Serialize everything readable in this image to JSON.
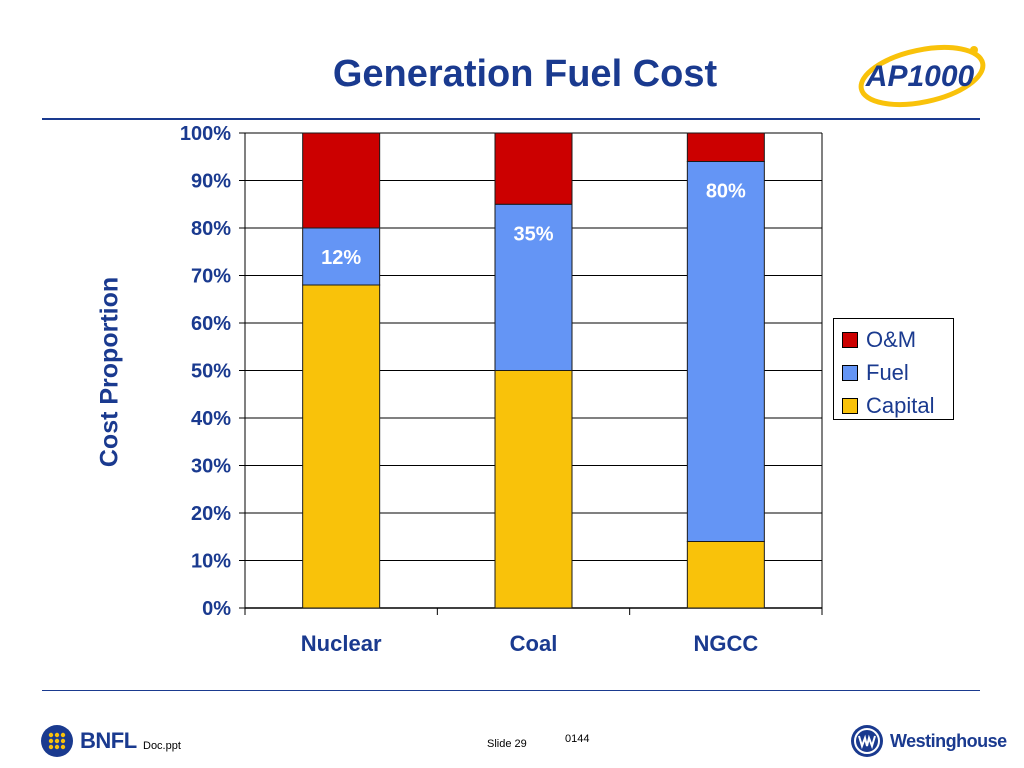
{
  "slide": {
    "title": "Generation Fuel Cost",
    "logo_text": "AP1000"
  },
  "footer": {
    "left_logo_text": "BNFL",
    "doc_label": "Doc.ppt",
    "slide_label": "Slide 29",
    "code": "0144",
    "right_logo_text": "Westinghouse"
  },
  "colors": {
    "title": "#1a3a8f",
    "capital": "#f9c20a",
    "fuel": "#6495f5",
    "om": "#cc0000"
  },
  "chart_data": {
    "type": "bar",
    "stacked": true,
    "title": "",
    "xlabel": "",
    "ylabel": "Cost Proportion",
    "ylim": [
      0,
      100
    ],
    "yticks": [
      0,
      10,
      20,
      30,
      40,
      50,
      60,
      70,
      80,
      90,
      100
    ],
    "ytick_labels": [
      "0%",
      "10%",
      "20%",
      "30%",
      "40%",
      "50%",
      "60%",
      "70%",
      "80%",
      "90%",
      "100%"
    ],
    "categories": [
      "Nuclear",
      "Coal",
      "NGCC"
    ],
    "series": [
      {
        "name": "Capital",
        "color": "#f9c20a",
        "values": [
          68,
          50,
          14
        ]
      },
      {
        "name": "Fuel",
        "color": "#6495f5",
        "values": [
          12,
          35,
          80
        ],
        "labels": [
          "12%",
          "35%",
          "80%"
        ]
      },
      {
        "name": "O&M",
        "color": "#cc0000",
        "values": [
          20,
          15,
          6
        ]
      }
    ],
    "legend": {
      "placement": "right",
      "order": [
        "O&M",
        "Fuel",
        "Capital"
      ]
    },
    "grid": true
  }
}
